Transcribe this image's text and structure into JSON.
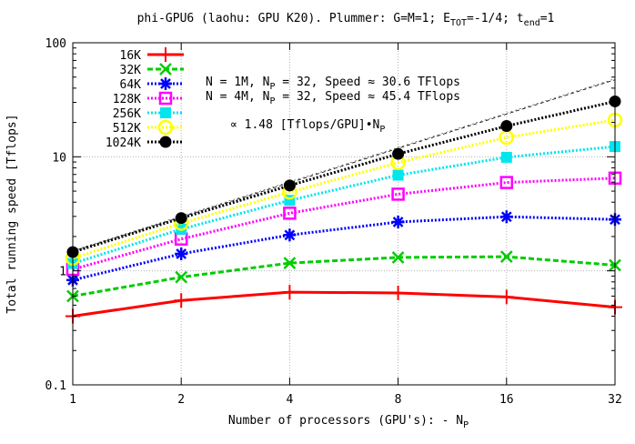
{
  "chart_data": {
    "type": "line",
    "title": "phi-GPU6 (laohu: GPU K20). Plummer: G=M=1; E",
    "title_sub1": "TOT",
    "title_mid": "=-1/4; t",
    "title_sub2": "end",
    "title_end": "=1",
    "xlabel": "Number of processors (GPU's): - N",
    "xlabel_sub": "P",
    "ylabel": "Total running speed [Tflops]",
    "x_scale": "log2",
    "y_scale": "log10",
    "xlim": [
      1,
      32
    ],
    "ylim": [
      0.1,
      100
    ],
    "x": [
      1,
      2,
      4,
      8,
      16,
      32
    ],
    "x_tick_labels": [
      "1",
      "2",
      "4",
      "8",
      "16",
      "32"
    ],
    "y_ticks": [
      0.1,
      1,
      10,
      100
    ],
    "y_tick_labels": [
      "0.1",
      "1",
      "10",
      "100"
    ],
    "grid": true,
    "legend_position": "top-left",
    "series": [
      {
        "name": "16K",
        "color": "#ff0000",
        "marker": "plus",
        "dash": "solid",
        "values": [
          0.4,
          0.55,
          0.65,
          0.64,
          0.59,
          0.48
        ]
      },
      {
        "name": "32K",
        "color": "#00cc00",
        "marker": "cross",
        "dash": "dashed",
        "values": [
          0.6,
          0.88,
          1.17,
          1.31,
          1.33,
          1.12
        ]
      },
      {
        "name": "64K",
        "color": "#0000ff",
        "marker": "star",
        "dash": "dotted",
        "values": [
          0.83,
          1.41,
          2.06,
          2.68,
          2.98,
          2.82
        ]
      },
      {
        "name": "128K",
        "color": "#ff00ff",
        "marker": "open-square",
        "dash": "dotted",
        "values": [
          1.03,
          1.9,
          3.2,
          4.7,
          5.95,
          6.5
        ]
      },
      {
        "name": "256K",
        "color": "#00e5ee",
        "marker": "filled-square",
        "dash": "dotted",
        "values": [
          1.16,
          2.32,
          4.15,
          6.9,
          9.9,
          12.3
        ]
      },
      {
        "name": "512K",
        "color": "#ffff00",
        "marker": "open-circle",
        "dash": "dotted",
        "values": [
          1.29,
          2.61,
          4.9,
          8.9,
          14.8,
          21.0
        ]
      },
      {
        "name": "1024K",
        "color": "#000000",
        "marker": "filled-circle",
        "dash": "dotted",
        "values": [
          1.46,
          2.9,
          5.6,
          10.6,
          18.6,
          30.6
        ]
      }
    ],
    "reference_line": {
      "label": "∝ 1.48 [Tflops/GPU]•N",
      "label_sub": "P",
      "slope": 1.48
    },
    "annotations": [
      {
        "text": "N = 1M, N",
        "sub": "P",
        "rest": " = 32, Speed ≈ 30.6 TFlops"
      },
      {
        "text": "N = 4M, N",
        "sub": "P",
        "rest": " = 32, Speed ≈ 45.4 TFlops"
      }
    ]
  }
}
